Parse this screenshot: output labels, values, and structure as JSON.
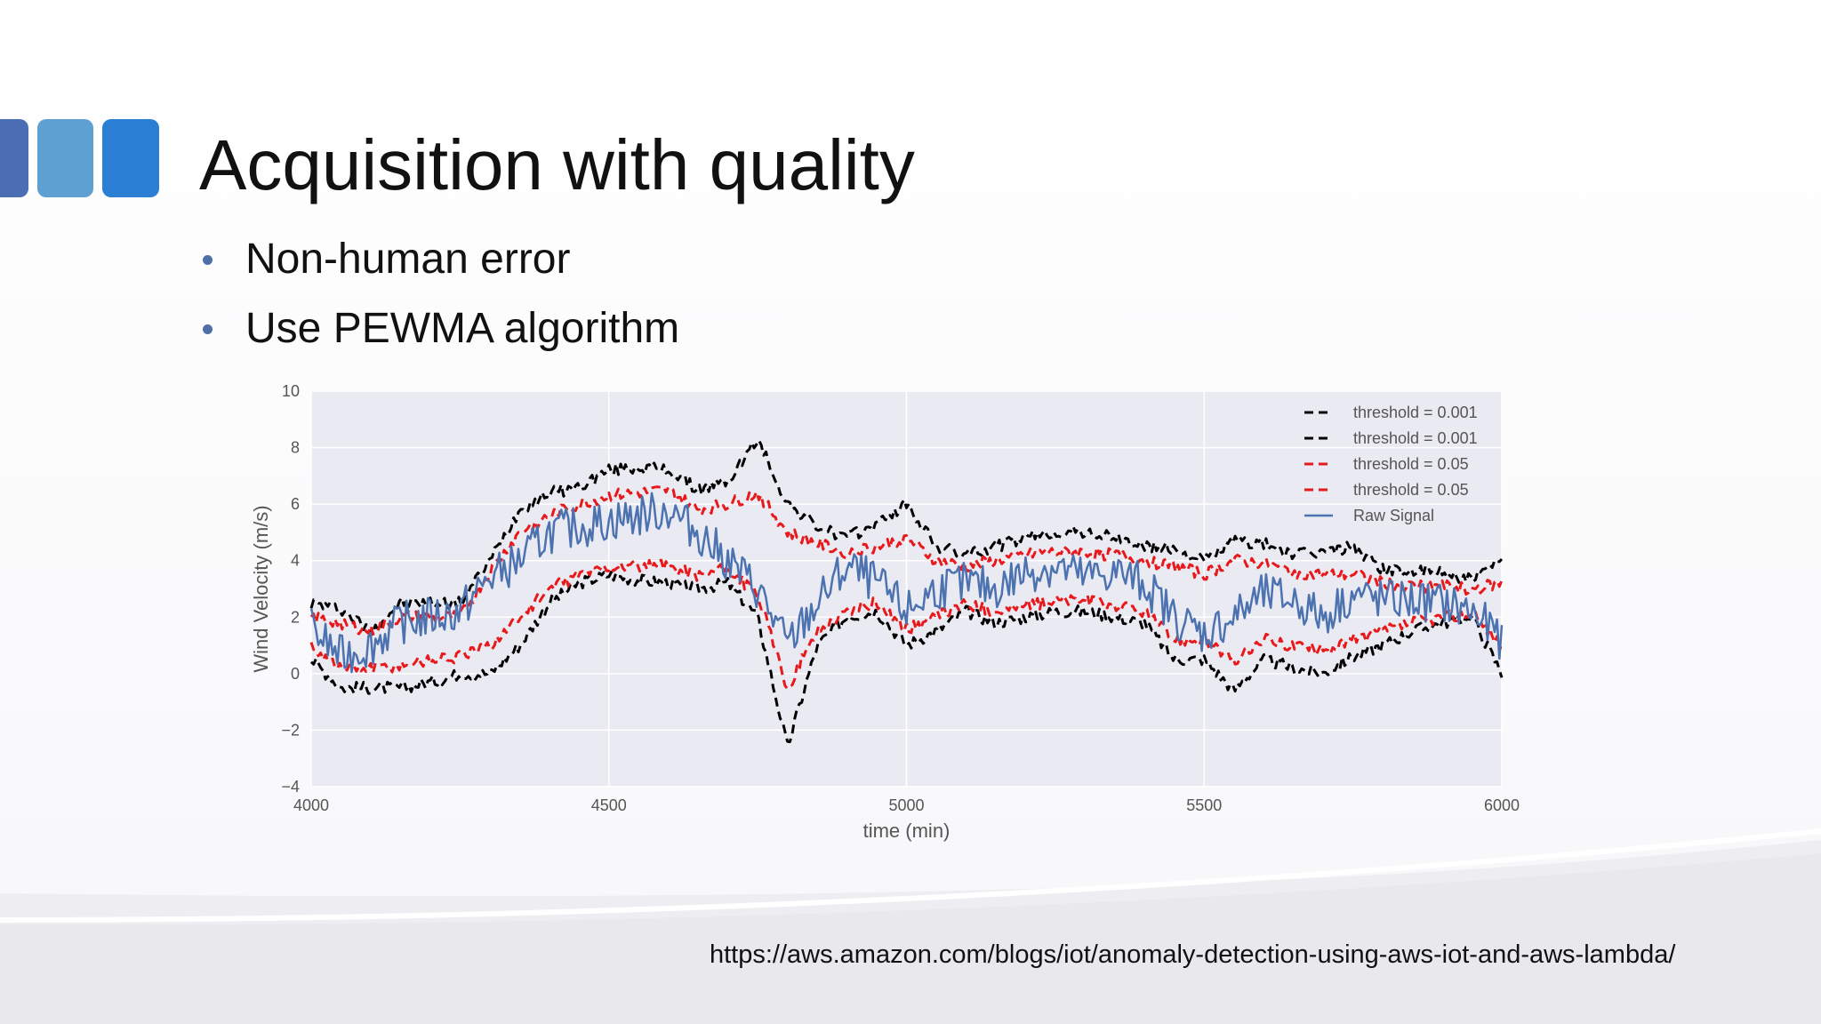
{
  "slide": {
    "title": "Acquisition with quality",
    "bullets": [
      "Non-human error",
      "Use PEWMA algorithm"
    ],
    "source_url": "https://aws.amazon.com/blogs/iot/anomaly-detection-using-aws-iot-and-aws-lambda/",
    "accent_colors": [
      "#4a6db3",
      "#5fa0d3",
      "#2a7fd4"
    ]
  },
  "chart_data": {
    "type": "line",
    "title": "",
    "xlabel": "time (min)",
    "ylabel": "Wind Velocity (m/s)",
    "xlim": [
      4000,
      6000
    ],
    "ylim": [
      -4,
      10
    ],
    "xticks": [
      4000,
      4500,
      5000,
      5500,
      6000
    ],
    "yticks": [
      -4,
      -2,
      0,
      2,
      4,
      6,
      8,
      10
    ],
    "ytick_labels": [
      "−4",
      "−2",
      "0",
      "2",
      "4",
      "6",
      "8",
      "10"
    ],
    "grid": true,
    "legend_position": "top-right",
    "background": "#eaeaf2",
    "x": [
      4000,
      4050,
      4100,
      4150,
      4200,
      4250,
      4300,
      4350,
      4400,
      4450,
      4500,
      4550,
      4600,
      4650,
      4700,
      4750,
      4800,
      4850,
      4900,
      4950,
      5000,
      5050,
      5100,
      5150,
      5200,
      5250,
      5300,
      5350,
      5400,
      5450,
      5500,
      5550,
      5600,
      5650,
      5700,
      5750,
      5800,
      5850,
      5900,
      5950,
      6000
    ],
    "series": [
      {
        "name": "threshold = 0.001",
        "color": "#000000",
        "style": "dashed",
        "values": [
          2.5,
          2.3,
          1.5,
          2.5,
          2.5,
          2.5,
          4.0,
          5.8,
          6.4,
          6.6,
          7.2,
          7.3,
          7.2,
          6.5,
          6.8,
          8.3,
          6.0,
          5.2,
          4.8,
          5.3,
          6.0,
          4.5,
          4.2,
          4.5,
          4.8,
          5.0,
          5.0,
          4.8,
          4.5,
          4.4,
          4.0,
          4.7,
          4.6,
          4.2,
          4.3,
          4.5,
          3.7,
          3.6,
          3.6,
          3.3,
          4.0
        ]
      },
      {
        "name": "threshold = 0.001",
        "color": "#000000",
        "style": "dashed",
        "values": [
          0.5,
          -0.5,
          -0.5,
          -0.5,
          -0.3,
          0.0,
          0.0,
          1.0,
          2.5,
          3.2,
          3.5,
          3.3,
          3.2,
          3.0,
          3.2,
          2.0,
          -2.6,
          1.0,
          2.0,
          2.2,
          1.0,
          1.5,
          2.2,
          1.8,
          2.0,
          2.2,
          2.2,
          2.0,
          1.8,
          0.5,
          0.5,
          -0.6,
          0.5,
          0.2,
          0.0,
          0.6,
          1.0,
          1.5,
          1.8,
          2.0,
          0.0
        ]
      },
      {
        "name": "threshold = 0.05",
        "color": "#e8191b",
        "style": "dashed",
        "values": [
          2.0,
          1.8,
          1.5,
          2.0,
          2.0,
          2.0,
          3.6,
          5.0,
          5.6,
          6.0,
          6.3,
          6.4,
          6.5,
          5.8,
          6.0,
          6.4,
          5.0,
          4.6,
          4.3,
          4.5,
          4.8,
          4.0,
          3.8,
          4.0,
          4.2,
          4.3,
          4.3,
          4.2,
          4.0,
          3.8,
          3.5,
          4.0,
          3.9,
          3.6,
          3.5,
          3.5,
          3.2,
          3.1,
          3.1,
          3.0,
          3.2
        ]
      },
      {
        "name": "threshold = 0.05",
        "color": "#e8191b",
        "style": "dashed",
        "values": [
          1.0,
          0.2,
          0.2,
          0.3,
          0.5,
          0.6,
          1.0,
          2.0,
          3.0,
          3.5,
          3.8,
          3.8,
          3.8,
          3.5,
          3.7,
          2.8,
          -0.5,
          1.5,
          2.2,
          2.5,
          1.6,
          2.0,
          2.5,
          2.2,
          2.4,
          2.6,
          2.6,
          2.4,
          2.2,
          1.2,
          1.2,
          0.4,
          1.2,
          1.0,
          0.8,
          1.2,
          1.5,
          1.8,
          2.0,
          2.1,
          1.0
        ]
      },
      {
        "name": "Raw Signal",
        "color": "#4c72b0",
        "style": "solid",
        "values": [
          1.6,
          0.6,
          1.0,
          1.8,
          2.0,
          2.2,
          3.4,
          4.0,
          5.0,
          5.2,
          5.4,
          5.6,
          5.8,
          5.0,
          4.0,
          3.0,
          1.0,
          2.5,
          3.8,
          3.2,
          2.2,
          3.0,
          3.2,
          3.0,
          3.6,
          3.8,
          3.4,
          3.6,
          3.2,
          2.0,
          1.4,
          2.0,
          2.8,
          2.6,
          2.0,
          2.8,
          2.6,
          2.6,
          2.5,
          2.2,
          1.2
        ]
      }
    ]
  }
}
